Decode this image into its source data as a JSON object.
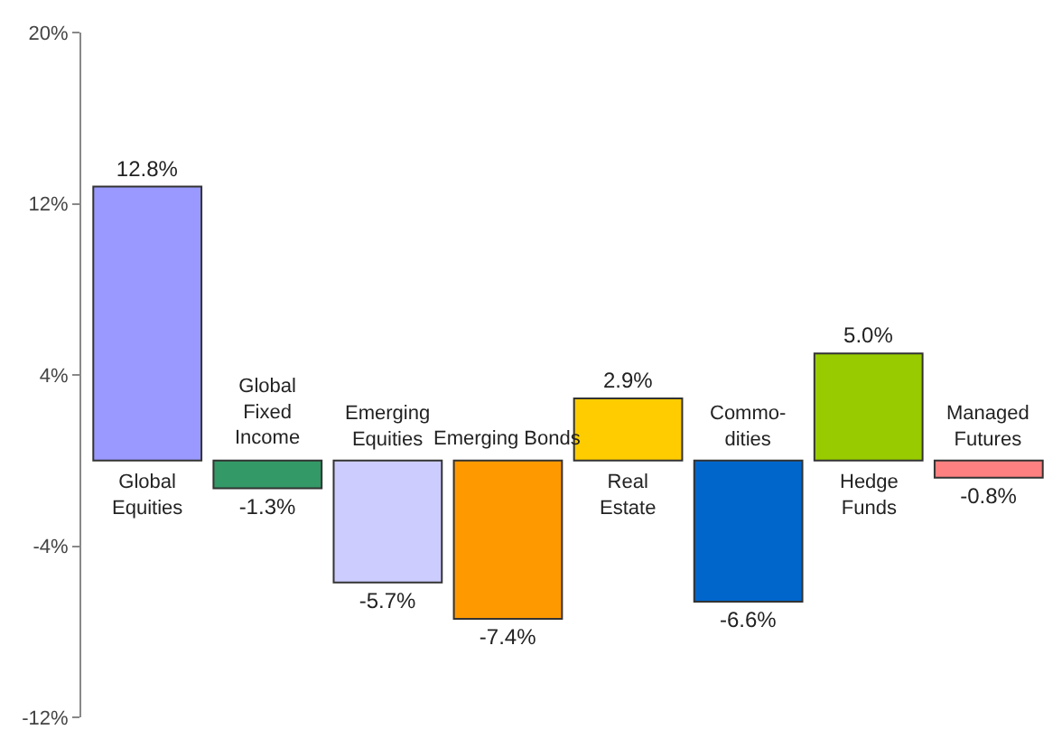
{
  "chart_data": {
    "type": "bar",
    "categories": [
      "Global\nEquities",
      "Global\nFixed\nIncome",
      "Emerging\nEquities",
      "Emerging Bonds",
      "Real\nEstate",
      "Commo-\ndities",
      "Hedge\nFunds",
      "Managed\nFutures"
    ],
    "values": [
      12.8,
      -1.3,
      -5.7,
      -7.4,
      2.9,
      -6.6,
      5.0,
      -0.8
    ],
    "value_labels": [
      "12.8%",
      "-1.3%",
      "-5.7%",
      "-7.4%",
      "2.9%",
      "-6.6%",
      "5.0%",
      "-0.8%"
    ],
    "colors": [
      "#9999ff",
      "#339966",
      "#ccccff",
      "#ff9900",
      "#ffcc00",
      "#0066cc",
      "#99cc00",
      "#ff8080"
    ],
    "ylim": [
      -12,
      20
    ],
    "yticks": [
      {
        "value": 20,
        "label": "20%"
      },
      {
        "value": 12,
        "label": "12%"
      },
      {
        "value": 4,
        "label": "4%"
      },
      {
        "value": -4,
        "label": "-4%"
      },
      {
        "value": -12,
        "label": "-12%"
      }
    ],
    "grid": false
  }
}
